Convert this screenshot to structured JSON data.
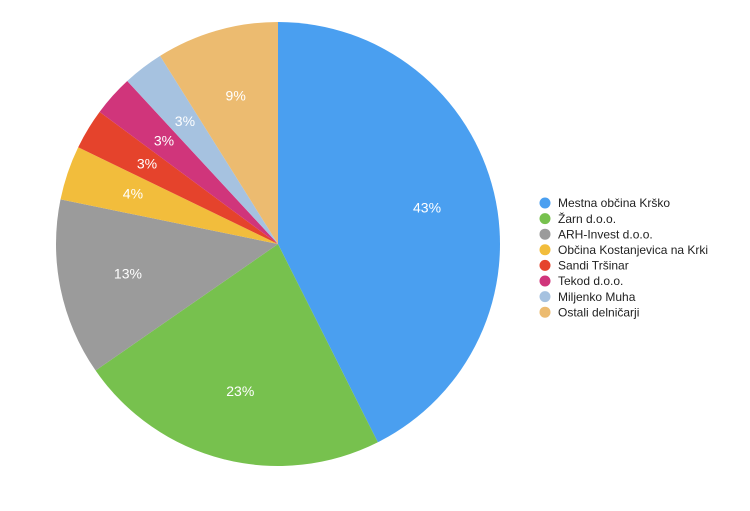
{
  "chart_data": {
    "type": "pie",
    "categories": [
      "Mestna občina Krško",
      "Žarn d.o.o.",
      "ARH-Invest d.o.o.",
      "Občina Kostanjevica na Krki",
      "Sandi Tršinar",
      "Tekod d.o.o.",
      "Miljenko Muha",
      "Ostali delničarji"
    ],
    "values": [
      43,
      23,
      13,
      4,
      3,
      3,
      3,
      9
    ],
    "value_labels": [
      "43%",
      "23%",
      "13%",
      "4%",
      "3%",
      "3%",
      "3%",
      "9%"
    ],
    "colors": [
      "#4a9ff0",
      "#77c14e",
      "#9b9b9b",
      "#f2bd3c",
      "#e5432c",
      "#d0357b",
      "#a6c2e0",
      "#ecbb70"
    ],
    "legend": "right"
  }
}
